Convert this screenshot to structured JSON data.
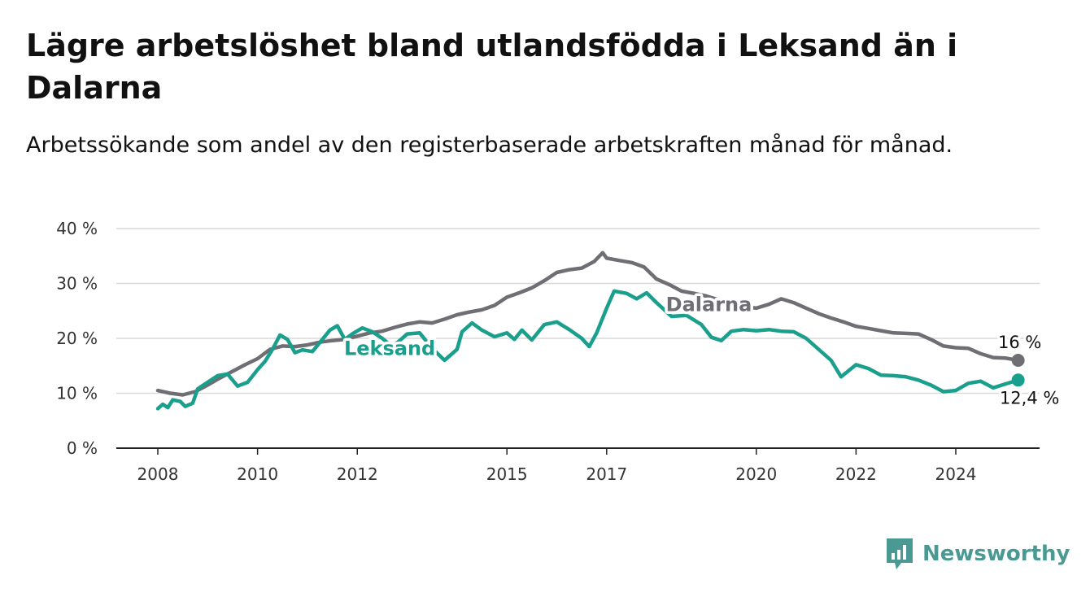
{
  "title": "Lägre arbetslöshet bland utlandsfödda i Leksand än i Dalarna",
  "subtitle": "Arbetssökande som andel av den registerbaserade arbetskraften månad för månad.",
  "brand": {
    "name": "Newsworthy",
    "color": "#4a9a93",
    "icon": "newsworthy-logo-icon"
  },
  "chart_data": {
    "type": "line",
    "ylim": [
      0,
      40
    ],
    "yticks": [
      {
        "value": 0,
        "label": "0 %"
      },
      {
        "value": 10,
        "label": "10 %"
      },
      {
        "value": 20,
        "label": "20 %"
      },
      {
        "value": 30,
        "label": "30 %"
      },
      {
        "value": 40,
        "label": "40 %"
      }
    ],
    "xlim": [
      2007.2,
      2025.8
    ],
    "xticks": [
      {
        "value": 2008,
        "label": "2008"
      },
      {
        "value": 2010,
        "label": "2010"
      },
      {
        "value": 2012,
        "label": "2012"
      },
      {
        "value": 2015,
        "label": "2015"
      },
      {
        "value": 2017,
        "label": "2017"
      },
      {
        "value": 2020,
        "label": "2020"
      },
      {
        "value": 2022,
        "label": "2022"
      },
      {
        "value": 2024,
        "label": "2024"
      }
    ],
    "grid": true,
    "series": [
      {
        "name": "Dalarna",
        "color": "#6f6e74",
        "end_label": "16 %",
        "points": [
          [
            2008.0,
            10.5
          ],
          [
            2008.25,
            10.0
          ],
          [
            2008.5,
            9.7
          ],
          [
            2008.75,
            10.3
          ],
          [
            2009.0,
            11.5
          ],
          [
            2009.25,
            12.8
          ],
          [
            2009.5,
            14.0
          ],
          [
            2009.75,
            15.2
          ],
          [
            2010.0,
            16.3
          ],
          [
            2010.25,
            18.0
          ],
          [
            2010.5,
            18.6
          ],
          [
            2010.75,
            18.5
          ],
          [
            2011.0,
            18.8
          ],
          [
            2011.25,
            19.3
          ],
          [
            2011.5,
            19.6
          ],
          [
            2011.75,
            19.8
          ],
          [
            2012.0,
            20.4
          ],
          [
            2012.25,
            21.0
          ],
          [
            2012.5,
            21.3
          ],
          [
            2012.75,
            22.0
          ],
          [
            2013.0,
            22.6
          ],
          [
            2013.25,
            23.0
          ],
          [
            2013.5,
            22.8
          ],
          [
            2013.75,
            23.5
          ],
          [
            2014.0,
            24.3
          ],
          [
            2014.25,
            24.8
          ],
          [
            2014.5,
            25.2
          ],
          [
            2014.75,
            26.0
          ],
          [
            2015.0,
            27.5
          ],
          [
            2015.25,
            28.3
          ],
          [
            2015.5,
            29.2
          ],
          [
            2015.75,
            30.5
          ],
          [
            2016.0,
            32.0
          ],
          [
            2016.25,
            32.5
          ],
          [
            2016.5,
            32.8
          ],
          [
            2016.75,
            34.0
          ],
          [
            2016.92,
            35.6
          ],
          [
            2017.0,
            34.6
          ],
          [
            2017.25,
            34.2
          ],
          [
            2017.5,
            33.8
          ],
          [
            2017.75,
            33.0
          ],
          [
            2018.0,
            30.8
          ],
          [
            2018.25,
            29.8
          ],
          [
            2018.5,
            28.6
          ],
          [
            2018.75,
            28.2
          ],
          [
            2019.0,
            27.7
          ],
          [
            2019.25,
            27.0
          ],
          [
            2019.5,
            26.6
          ],
          [
            2019.75,
            25.8
          ],
          [
            2020.0,
            25.5
          ],
          [
            2020.25,
            26.2
          ],
          [
            2020.5,
            27.2
          ],
          [
            2020.75,
            26.5
          ],
          [
            2021.0,
            25.5
          ],
          [
            2021.25,
            24.5
          ],
          [
            2021.5,
            23.7
          ],
          [
            2021.75,
            23.0
          ],
          [
            2022.0,
            22.2
          ],
          [
            2022.25,
            21.8
          ],
          [
            2022.5,
            21.4
          ],
          [
            2022.75,
            21.0
          ],
          [
            2023.0,
            20.9
          ],
          [
            2023.25,
            20.8
          ],
          [
            2023.5,
            19.8
          ],
          [
            2023.75,
            18.6
          ],
          [
            2024.0,
            18.3
          ],
          [
            2024.25,
            18.2
          ],
          [
            2024.5,
            17.2
          ],
          [
            2024.75,
            16.5
          ],
          [
            2025.0,
            16.4
          ],
          [
            2025.25,
            16.0
          ]
        ]
      },
      {
        "name": "Leksand",
        "color": "#1a9f8d",
        "end_label": "12,4 %",
        "points": [
          [
            2008.0,
            7.2
          ],
          [
            2008.1,
            8.0
          ],
          [
            2008.2,
            7.4
          ],
          [
            2008.3,
            8.8
          ],
          [
            2008.45,
            8.5
          ],
          [
            2008.55,
            7.6
          ],
          [
            2008.7,
            8.2
          ],
          [
            2008.8,
            10.8
          ],
          [
            2009.0,
            12.0
          ],
          [
            2009.2,
            13.2
          ],
          [
            2009.4,
            13.5
          ],
          [
            2009.6,
            11.3
          ],
          [
            2009.8,
            12.0
          ],
          [
            2010.0,
            14.3
          ],
          [
            2010.15,
            15.8
          ],
          [
            2010.3,
            18.0
          ],
          [
            2010.45,
            20.6
          ],
          [
            2010.6,
            19.8
          ],
          [
            2010.75,
            17.4
          ],
          [
            2010.9,
            17.9
          ],
          [
            2011.1,
            17.6
          ],
          [
            2011.3,
            19.8
          ],
          [
            2011.45,
            21.5
          ],
          [
            2011.6,
            22.3
          ],
          [
            2011.75,
            19.8
          ],
          [
            2011.9,
            20.8
          ],
          [
            2012.1,
            21.9
          ],
          [
            2012.3,
            21.2
          ],
          [
            2012.5,
            20.0
          ],
          [
            2012.7,
            18.5
          ],
          [
            2012.85,
            19.6
          ],
          [
            2013.0,
            20.8
          ],
          [
            2013.25,
            21.0
          ],
          [
            2013.5,
            18.2
          ],
          [
            2013.75,
            16.0
          ],
          [
            2014.0,
            18.0
          ],
          [
            2014.1,
            21.2
          ],
          [
            2014.3,
            22.8
          ],
          [
            2014.5,
            21.5
          ],
          [
            2014.75,
            20.3
          ],
          [
            2015.0,
            21.0
          ],
          [
            2015.15,
            19.8
          ],
          [
            2015.3,
            21.5
          ],
          [
            2015.5,
            19.7
          ],
          [
            2015.75,
            22.5
          ],
          [
            2016.0,
            23.0
          ],
          [
            2016.25,
            21.6
          ],
          [
            2016.5,
            20.0
          ],
          [
            2016.65,
            18.5
          ],
          [
            2016.8,
            21.0
          ],
          [
            2017.0,
            25.5
          ],
          [
            2017.15,
            28.6
          ],
          [
            2017.4,
            28.2
          ],
          [
            2017.6,
            27.2
          ],
          [
            2017.8,
            28.3
          ],
          [
            2018.0,
            26.5
          ],
          [
            2018.3,
            24.0
          ],
          [
            2018.6,
            24.2
          ],
          [
            2018.9,
            22.5
          ],
          [
            2019.1,
            20.2
          ],
          [
            2019.3,
            19.6
          ],
          [
            2019.5,
            21.3
          ],
          [
            2019.75,
            21.6
          ],
          [
            2020.0,
            21.4
          ],
          [
            2020.25,
            21.6
          ],
          [
            2020.5,
            21.3
          ],
          [
            2020.75,
            21.2
          ],
          [
            2021.0,
            20.0
          ],
          [
            2021.25,
            18.0
          ],
          [
            2021.5,
            16.0
          ],
          [
            2021.7,
            13.0
          ],
          [
            2022.0,
            15.2
          ],
          [
            2022.25,
            14.5
          ],
          [
            2022.5,
            13.3
          ],
          [
            2022.75,
            13.2
          ],
          [
            2023.0,
            13.0
          ],
          [
            2023.25,
            12.4
          ],
          [
            2023.5,
            11.5
          ],
          [
            2023.75,
            10.3
          ],
          [
            2024.0,
            10.5
          ],
          [
            2024.25,
            11.8
          ],
          [
            2024.5,
            12.2
          ],
          [
            2024.75,
            11.0
          ],
          [
            2025.0,
            11.7
          ],
          [
            2025.25,
            12.4
          ]
        ]
      }
    ]
  }
}
